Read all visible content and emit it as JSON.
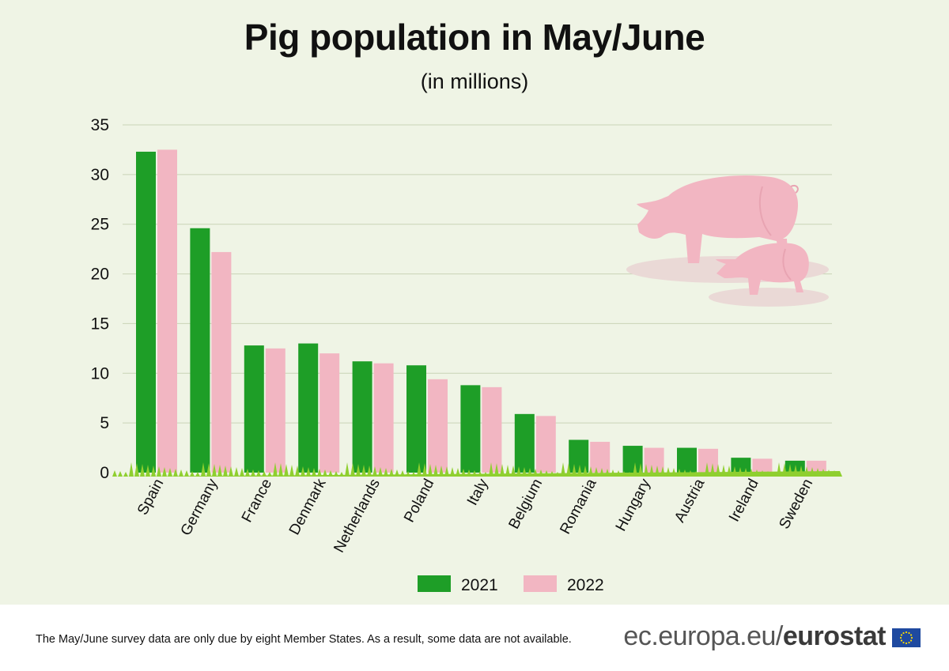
{
  "chart_data": {
    "type": "bar",
    "title": "Pig population in May/June",
    "subtitle": "(in millions)",
    "categories": [
      "Spain",
      "Germany",
      "France",
      "Denmark",
      "Netherlands",
      "Poland",
      "Italy",
      "Belgium",
      "Romania",
      "Hungary",
      "Austria",
      "Ireland",
      "Sweden"
    ],
    "series": [
      {
        "name": "2021",
        "color": "#1e9e27",
        "values": [
          32.3,
          24.6,
          12.8,
          13.0,
          11.2,
          10.8,
          8.8,
          5.9,
          3.3,
          2.7,
          2.5,
          1.5,
          1.2
        ]
      },
      {
        "name": "2022",
        "color": "#f2b6c2",
        "values": [
          32.5,
          22.2,
          12.5,
          12.0,
          11.0,
          9.4,
          8.6,
          5.7,
          3.1,
          2.5,
          2.4,
          1.4,
          1.2
        ]
      }
    ],
    "yticks": [
      "0",
      "5",
      "10",
      "15",
      "20",
      "25",
      "30",
      "35"
    ],
    "ylim": [
      0,
      35
    ],
    "grid": true,
    "legend": "bottom-center"
  },
  "footer": {
    "note": "The May/June survey data are only due by eight Member States. As a result, some data are not available.",
    "brand_light": "ec.europa.eu/",
    "brand_bold": "eurostat"
  }
}
